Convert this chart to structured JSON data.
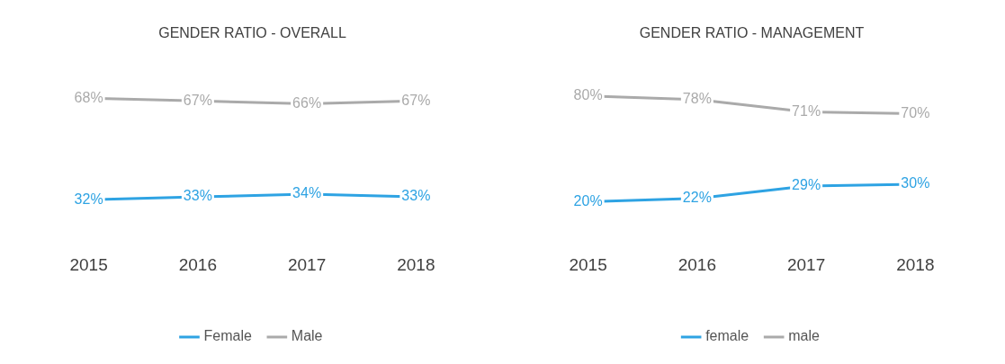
{
  "chart_data": [
    {
      "type": "line",
      "title": "GENDER RATIO - OVERALL",
      "categories": [
        "2015",
        "2016",
        "2017",
        "2018"
      ],
      "legend": "bottom",
      "grid": false,
      "line_style": "solid",
      "series": [
        {
          "name": "Female",
          "color": "#2ea3e3",
          "values": [
            32,
            33,
            34,
            33
          ],
          "value_labels": [
            "32%",
            "33%",
            "34%",
            "33%"
          ]
        },
        {
          "name": "Male",
          "color": "#aaaaaa",
          "values": [
            68,
            67,
            66,
            67
          ],
          "value_labels": [
            "68%",
            "67%",
            "66%",
            "67%"
          ]
        }
      ]
    },
    {
      "type": "line",
      "title": "GENDER RATIO - MANAGEMENT",
      "categories": [
        "2015",
        "2016",
        "2017",
        "2018"
      ],
      "legend": "bottom",
      "grid": false,
      "line_style": "solid",
      "series": [
        {
          "name": "female",
          "color": "#2ea3e3",
          "values": [
            20,
            22,
            29,
            30
          ],
          "value_labels": [
            "20%",
            "22%",
            "29%",
            "30%"
          ]
        },
        {
          "name": "male",
          "color": "#aaaaaa",
          "values": [
            80,
            78,
            71,
            70
          ],
          "value_labels": [
            "80%",
            "78%",
            "71%",
            "70%"
          ]
        }
      ]
    }
  ]
}
